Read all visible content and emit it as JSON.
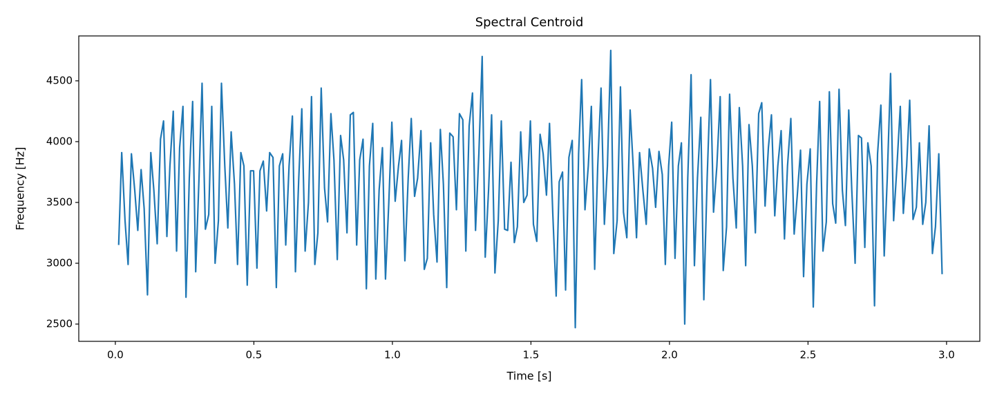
{
  "chart_data": {
    "type": "line",
    "title": "Spectral Centroid",
    "xlabel": "Time [s]",
    "ylabel": "Frequency [Hz]",
    "color": "#1f77b4",
    "grid": false,
    "xlim": [
      -0.132,
      3.12
    ],
    "ylim": [
      2358,
      4869
    ],
    "xticks": [
      {
        "value": 0,
        "label": "0.0"
      },
      0.5,
      {
        "value": 1,
        "label": "1.0"
      },
      1.5,
      {
        "value": 2,
        "label": "2.0"
      },
      2.5,
      {
        "value": 3,
        "label": "3.0"
      }
    ],
    "yticks": [
      2500,
      3000,
      3500,
      4000,
      4500
    ],
    "x": [
      0.012,
      0.023,
      0.035,
      0.046,
      0.058,
      0.07,
      0.081,
      0.093,
      0.104,
      0.116,
      0.128,
      0.139,
      0.151,
      0.163,
      0.174,
      0.186,
      0.197,
      0.209,
      0.221,
      0.232,
      0.244,
      0.255,
      0.267,
      0.279,
      0.29,
      0.302,
      0.313,
      0.325,
      0.337,
      0.348,
      0.36,
      0.372,
      0.383,
      0.395,
      0.406,
      0.418,
      0.43,
      0.441,
      0.453,
      0.464,
      0.476,
      0.488,
      0.499,
      0.511,
      0.522,
      0.534,
      0.546,
      0.557,
      0.569,
      0.581,
      0.592,
      0.604,
      0.615,
      0.627,
      0.639,
      0.65,
      0.662,
      0.673,
      0.685,
      0.697,
      0.708,
      0.72,
      0.731,
      0.743,
      0.755,
      0.766,
      0.778,
      0.789,
      0.801,
      0.813,
      0.824,
      0.836,
      0.848,
      0.859,
      0.871,
      0.882,
      0.894,
      0.906,
      0.917,
      0.929,
      0.94,
      0.952,
      0.964,
      0.975,
      0.987,
      0.998,
      1.01,
      1.022,
      1.033,
      1.045,
      1.057,
      1.068,
      1.08,
      1.091,
      1.103,
      1.115,
      1.126,
      1.138,
      1.149,
      1.161,
      1.173,
      1.184,
      1.196,
      1.207,
      1.219,
      1.231,
      1.242,
      1.254,
      1.265,
      1.277,
      1.289,
      1.3,
      1.312,
      1.324,
      1.335,
      1.347,
      1.358,
      1.37,
      1.382,
      1.393,
      1.405,
      1.416,
      1.428,
      1.44,
      1.451,
      1.463,
      1.474,
      1.486,
      1.498,
      1.509,
      1.521,
      1.533,
      1.544,
      1.556,
      1.567,
      1.579,
      1.591,
      1.602,
      1.614,
      1.625,
      1.637,
      1.649,
      1.66,
      1.672,
      1.683,
      1.695,
      1.707,
      1.718,
      1.73,
      1.741,
      1.753,
      1.765,
      1.776,
      1.788,
      1.799,
      1.811,
      1.823,
      1.834,
      1.846,
      1.858,
      1.869,
      1.881,
      1.892,
      1.904,
      1.916,
      1.927,
      1.939,
      1.95,
      1.962,
      1.974,
      1.985,
      1.997,
      2.008,
      2.02,
      2.032,
      2.043,
      2.055,
      2.066,
      2.078,
      2.09,
      2.101,
      2.113,
      2.124,
      2.136,
      2.148,
      2.159,
      2.171,
      2.183,
      2.194,
      2.206,
      2.217,
      2.229,
      2.241,
      2.252,
      2.264,
      2.275,
      2.287,
      2.299,
      2.31,
      2.322,
      2.333,
      2.345,
      2.357,
      2.368,
      2.38,
      2.391,
      2.403,
      2.415,
      2.426,
      2.438,
      2.45,
      2.461,
      2.473,
      2.484,
      2.496,
      2.508,
      2.519,
      2.531,
      2.542,
      2.554,
      2.566,
      2.577,
      2.589,
      2.6,
      2.612,
      2.624,
      2.635,
      2.647,
      2.658,
      2.67,
      2.682,
      2.693,
      2.705,
      2.716,
      2.728,
      2.74,
      2.751,
      2.763,
      2.775,
      2.786,
      2.798,
      2.809,
      2.821,
      2.833,
      2.844,
      2.856,
      2.867,
      2.879,
      2.891,
      2.902,
      2.914,
      2.925,
      2.937,
      2.949,
      2.96,
      2.972,
      2.984
    ],
    "values": [
      3150,
      3910,
      3350,
      2990,
      3900,
      3600,
      3270,
      3770,
      3450,
      2740,
      3910,
      3600,
      3160,
      4020,
      4170,
      3220,
      3800,
      4250,
      3100,
      3950,
      4290,
      2720,
      3700,
      4330,
      2930,
      3700,
      4480,
      3280,
      3400,
      4290,
      3000,
      3350,
      4480,
      3800,
      3290,
      4080,
      3650,
      2990,
      3910,
      3800,
      2820,
      3760,
      3760,
      2960,
      3760,
      3840,
      3430,
      3910,
      3870,
      2800,
      3800,
      3900,
      3150,
      3800,
      4210,
      2930,
      3700,
      4270,
      3100,
      3500,
      4370,
      2990,
      3250,
      4440,
      3620,
      3340,
      4230,
      3850,
      3030,
      4050,
      3850,
      3250,
      4220,
      4240,
      3150,
      3850,
      4020,
      2790,
      3800,
      4150,
      2870,
      3600,
      3950,
      2870,
      3500,
      4160,
      3510,
      3800,
      4010,
      3020,
      3700,
      4190,
      3550,
      3700,
      4090,
      2950,
      3040,
      3990,
      3400,
      3010,
      4100,
      3650,
      2800,
      4070,
      4040,
      3440,
      4230,
      4180,
      3100,
      4130,
      4400,
      3270,
      3900,
      4700,
      3050,
      3600,
      4220,
      2920,
      3350,
      4170,
      3280,
      3270,
      3830,
      3170,
      3300,
      4080,
      3500,
      3560,
      4170,
      3320,
      3180,
      4060,
      3900,
      3560,
      4150,
      3400,
      2730,
      3670,
      3750,
      2780,
      3870,
      4010,
      2470,
      3900,
      4510,
      3440,
      3800,
      4290,
      2950,
      3800,
      4440,
      3320,
      3800,
      4750,
      3080,
      3350,
      4450,
      3420,
      3210,
      4260,
      3800,
      3210,
      3910,
      3600,
      3320,
      3940,
      3780,
      3460,
      3920,
      3730,
      2990,
      3800,
      4160,
      3040,
      3800,
      3990,
      2500,
      3700,
      4550,
      2980,
      3700,
      4200,
      2700,
      3700,
      4510,
      3420,
      3800,
      4370,
      2940,
      3300,
      4390,
      3700,
      3290,
      4280,
      3800,
      2980,
      4140,
      3800,
      3250,
      4230,
      4320,
      3470,
      3950,
      4220,
      3390,
      3800,
      4090,
      3200,
      3800,
      4190,
      3240,
      3550,
      3930,
      2890,
      3650,
      3940,
      2640,
      3650,
      4330,
      3100,
      3340,
      4410,
      3490,
      3330,
      4430,
      3600,
      3310,
      4260,
      3600,
      3000,
      4050,
      4030,
      3130,
      3990,
      3800,
      2650,
      3900,
      4300,
      3060,
      3700,
      4560,
      3350,
      3800,
      4290,
      3410,
      3800,
      4340,
      3360,
      3460,
      3990,
      3320,
      3500,
      4130,
      3080,
      3300,
      3900,
      2910
    ]
  }
}
